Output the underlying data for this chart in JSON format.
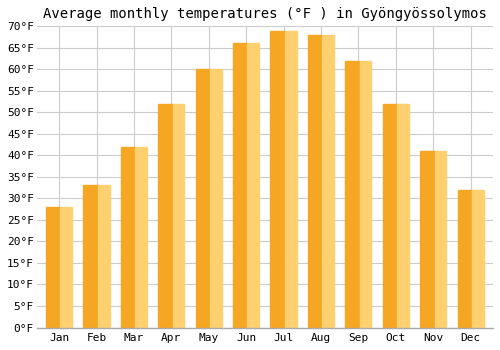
{
  "months": [
    "Jan",
    "Feb",
    "Mar",
    "Apr",
    "May",
    "Jun",
    "Jul",
    "Aug",
    "Sep",
    "Oct",
    "Nov",
    "Dec"
  ],
  "values": [
    28,
    33,
    42,
    52,
    60,
    66,
    69,
    68,
    62,
    52,
    41,
    32
  ],
  "bar_color_left": "#F5A623",
  "bar_color_right": "#FFD070",
  "bar_edge_color": "#E8980F",
  "title": "Average monthly temperatures (°F ) in Gyöngyössolymos",
  "ylim": [
    0,
    70
  ],
  "yticks": [
    0,
    5,
    10,
    15,
    20,
    25,
    30,
    35,
    40,
    45,
    50,
    55,
    60,
    65,
    70
  ],
  "ytick_labels": [
    "0°F",
    "5°F",
    "10°F",
    "15°F",
    "20°F",
    "25°F",
    "30°F",
    "35°F",
    "40°F",
    "45°F",
    "50°F",
    "55°F",
    "60°F",
    "65°F",
    "70°F"
  ],
  "background_color": "#ffffff",
  "plot_bg_color": "#f5f5f5",
  "grid_color": "#cccccc",
  "title_fontsize": 10,
  "tick_fontsize": 8,
  "bar_width": 0.7
}
